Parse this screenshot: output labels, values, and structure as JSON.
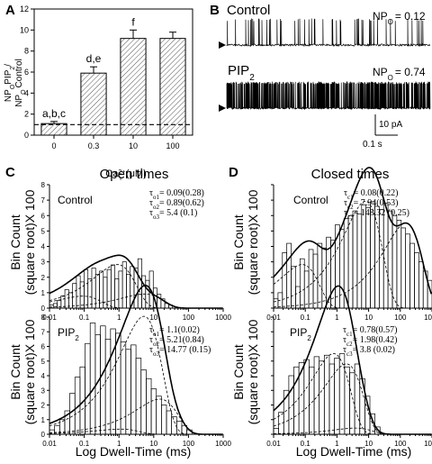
{
  "panels": {
    "A": {
      "letter": "A",
      "ylabel_parts": [
        "NP",
        "O",
        "PIP",
        "2",
        "/",
        "NP",
        "O",
        "Control"
      ],
      "xlabel_parts": [
        "Ca",
        "2+",
        "i",
        " (μM)"
      ],
      "chart_data": {
        "type": "bar",
        "categories": [
          "0",
          "0.3",
          "10",
          "100"
        ],
        "values": [
          1.1,
          5.9,
          9.2,
          9.2
        ],
        "errors": [
          0.2,
          0.6,
          0.8,
          0.6
        ],
        "annotations": [
          "a,b,c",
          "d,e",
          "f",
          ""
        ],
        "yticks": [
          0,
          2,
          4,
          6,
          8,
          10,
          12
        ],
        "ylim": [
          0,
          12
        ],
        "reference_line": 1.0,
        "hatched": true
      }
    },
    "B": {
      "letter": "B",
      "traces": [
        {
          "label": "Control",
          "npo_label": "NP",
          "npo_sub": "O",
          "npo_value": "= 0.12",
          "open_probability": 0.12
        },
        {
          "label_main": "PIP",
          "label_sub": "2",
          "npo_label": "NP",
          "npo_sub": "O",
          "npo_value": "= 0.74",
          "open_probability": 0.74
        }
      ],
      "scale_current": "10 pA",
      "scale_time": "0.1 s"
    },
    "C": {
      "letter": "C",
      "title": "Open times",
      "ylabel_line1": "Bin Count",
      "ylabel_line2": "(square root)X 100",
      "xlabel": "Log Dwell-Time (ms)",
      "x_ticks": [
        "0.01",
        "0.1",
        "1",
        "10",
        "100",
        "1000"
      ],
      "y_ticks": [
        "0",
        "1",
        "2",
        "3",
        "4",
        "5",
        "6",
        "7",
        "8"
      ],
      "top": {
        "label": "Control",
        "taus": [
          {
            "sym": "τ",
            "sub": "o1",
            "text": "= 0.09(0.28)"
          },
          {
            "sym": "τ",
            "sub": "o2",
            "text": "= 0.89(0.62)"
          },
          {
            "sym": "τ",
            "sub": "o3",
            "text": "= 5.4 (0.1)"
          }
        ]
      },
      "bottom": {
        "label_main": "PIP",
        "label_sub": "2",
        "taus": [
          {
            "sym": "τ",
            "sub": "o1",
            "text": "= 1.1(0.02)"
          },
          {
            "sym": "τ",
            "sub": "o2",
            "text": "= 5.21(0.84)"
          },
          {
            "sym": "τ",
            "sub": "o3",
            "text": "= 14.77 (0.15)"
          }
        ]
      }
    },
    "D": {
      "letter": "D",
      "title": "Closed times",
      "xlabel": "Log Dwell-Time (ms)",
      "x_ticks": [
        "0.01",
        "0.1",
        "1",
        "10",
        "100",
        "1000"
      ],
      "top": {
        "label": "Control",
        "taus": [
          {
            "sym": "τ",
            "sub": "c1",
            "text": "= 0.08(0.22)"
          },
          {
            "sym": "τ",
            "sub": "c2",
            "text": "= 7.94(0.53)"
          },
          {
            "sym": "τ",
            "sub": "c3",
            "text": "= 148.32 (0.25)"
          }
        ]
      },
      "bottom": {
        "label_main": "PIP",
        "label_sub": "2",
        "taus": [
          {
            "sym": "τ",
            "sub": "c1",
            "text": "= 0.78(0.57)"
          },
          {
            "sym": "τ",
            "sub": "c2",
            "text": "= 1.98(0.42)"
          },
          {
            "sym": "τ",
            "sub": "c3",
            "text": "= 3.8 (0.02)"
          }
        ]
      }
    }
  },
  "histograms": [
    {
      "id": "C-top",
      "xlim_log": [
        -2,
        3
      ],
      "ylim": [
        0,
        8
      ],
      "fit": {
        "amps": [
          0.55,
          2.0,
          0.65
        ],
        "taus_ms": [
          0.09,
          0.89,
          5.4
        ]
      },
      "bars": [
        0.2,
        0.3,
        0.5,
        0.8,
        1.2,
        1.0,
        1.6,
        2.1,
        1.7,
        2.5,
        1.9,
        2.6,
        2.2,
        2.4,
        2.0,
        2.5,
        2.8,
        1.9,
        2.4,
        3.0,
        2.2,
        2.7,
        2.6,
        3.2,
        2.1,
        1.8,
        2.4,
        1.3,
        0.9,
        0.6,
        0.3,
        0.2
      ]
    },
    {
      "id": "C-bottom",
      "xlim_log": [
        -2,
        3
      ],
      "ylim": [
        0,
        8
      ],
      "fit": {
        "amps": [
          0.25,
          5.7,
          1.7
        ],
        "taus_ms": [
          1.1,
          5.21,
          14.77
        ]
      },
      "bars": [
        0.3,
        0.6,
        1.0,
        1.6,
        2.8,
        3.9,
        4.6,
        6.2,
        7.6,
        6.8,
        7.4,
        6.5,
        7.2,
        6.9,
        6.3,
        5.8,
        6.1,
        5.2,
        4.4,
        3.8,
        3.1,
        2.6,
        2.0,
        1.6,
        1.2,
        0.9,
        0.6,
        0.3
      ]
    },
    {
      "id": "D-top",
      "xlim_log": [
        -2,
        3
      ],
      "ylim": [
        0,
        8
      ],
      "fit": {
        "amps": [
          2.0,
          4.9,
          3.9
        ],
        "taus_ms": [
          0.08,
          7.94,
          148.32
        ]
      },
      "bars": [
        0.6,
        1.0,
        3.6,
        4.2,
        2.7,
        1.4,
        3.2,
        2.4,
        3.8,
        3.5,
        4.2,
        3.9,
        4.6,
        4.4,
        5.4,
        5.1,
        5.8,
        6.0,
        6.3,
        6.1,
        6.7,
        6.5,
        6.9,
        6.6,
        6.4,
        6.8,
        6.3,
        6.0,
        5.7,
        5.2,
        4.8,
        4.2,
        3.6,
        3.0,
        2.4,
        1.8
      ]
    },
    {
      "id": "D-bottom",
      "xlim_log": [
        -2,
        3
      ],
      "ylim": [
        0,
        8
      ],
      "fit": {
        "amps": [
          3.9,
          3.4,
          0.3
        ],
        "taus_ms": [
          0.78,
          1.98,
          3.8
        ]
      },
      "bars": [
        0.4,
        1.5,
        3.0,
        4.0,
        4.6,
        4.9,
        5.1,
        4.6,
        5.3,
        5.0,
        5.4,
        4.8,
        5.2,
        5.5,
        4.6,
        4.2,
        4.8,
        3.8,
        2.6,
        1.4,
        0.5
      ]
    }
  ]
}
